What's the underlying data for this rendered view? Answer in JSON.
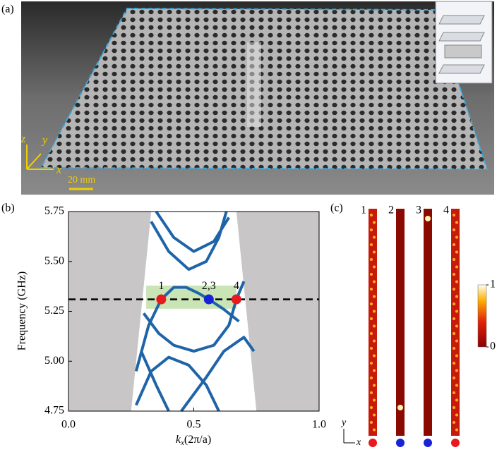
{
  "panels": {
    "a": "(a)",
    "b": "(b)",
    "c": "(c)"
  },
  "photo": {
    "axes": [
      "z",
      "y",
      "x"
    ],
    "scale_bar": "20 mm"
  },
  "chart_data": {
    "type": "line",
    "y_label": "Frequency (GHz)",
    "x_label": [
      "k",
      "x",
      "(2π/a)"
    ],
    "xlim": [
      0,
      1
    ],
    "ylim": [
      4.75,
      5.75
    ],
    "xticks": [
      {
        "value": 0,
        "label": "0.0"
      },
      {
        "value": 0.5,
        "label": "0.5"
      },
      {
        "value": 1,
        "label": "1.0"
      }
    ],
    "yticks": [
      {
        "value": 4.75,
        "label": "4.75"
      },
      {
        "value": 5,
        "label": "5.00"
      },
      {
        "value": 5.25,
        "label": "5.25"
      },
      {
        "value": 5.5,
        "label": "5.50"
      },
      {
        "value": 5.75,
        "label": "5.75"
      }
    ],
    "light_cone": {
      "x": [
        0.25,
        0.33,
        0.67,
        0.75
      ],
      "y": [
        4.75,
        5.75,
        5.75,
        4.75
      ]
    },
    "highlight": {
      "x": [
        0.31,
        0.67
      ],
      "y": [
        5.263,
        5.379
      ],
      "color": "#bfe0a8"
    },
    "reference_line": 5.31,
    "band_color": "#1f64a8",
    "bands": [
      {
        "x": [
          0.27,
          0.32,
          0.37,
          0.42,
          0.47,
          0.52,
          0.56,
          0.62,
          0.68
        ],
        "y": [
          4.95,
          5.18,
          5.31,
          5.37,
          5.37,
          5.34,
          5.31,
          5.26,
          5.2
        ]
      },
      {
        "x": [
          0.3,
          0.36,
          0.42,
          0.5,
          0.58,
          0.64,
          0.67,
          0.7
        ],
        "y": [
          5.24,
          5.14,
          5.08,
          5.05,
          5.08,
          5.18,
          5.31,
          5.4
        ]
      },
      {
        "x": [
          0.33,
          0.4,
          0.48,
          0.55,
          0.6,
          0.63
        ],
        "y": [
          5.7,
          5.55,
          5.46,
          5.5,
          5.62,
          5.75
        ]
      },
      {
        "x": [
          0.35,
          0.42,
          0.5,
          0.58,
          0.64
        ],
        "y": [
          5.75,
          5.62,
          5.55,
          5.6,
          5.72
        ]
      },
      {
        "x": [
          0.27,
          0.33,
          0.4,
          0.48,
          0.55,
          0.6
        ],
        "y": [
          4.78,
          4.95,
          5.02,
          4.98,
          4.88,
          4.75
        ]
      },
      {
        "x": [
          0.45,
          0.55,
          0.62,
          0.7,
          0.74
        ],
        "y": [
          4.75,
          4.92,
          5.05,
          5.12,
          5.05
        ]
      },
      {
        "x": [
          0.29,
          0.35,
          0.4
        ],
        "y": [
          5.05,
          4.88,
          4.75
        ]
      }
    ],
    "points": {
      "x": [
        0.37,
        0.56,
        0.67
      ],
      "y": [
        5.31,
        5.31,
        5.31
      ],
      "labels": [
        "1",
        "2,3",
        "4"
      ],
      "colors": [
        "#e8191f",
        "#1a22d8",
        "#e8191f"
      ]
    }
  },
  "field_maps": {
    "labels": [
      "1",
      "2",
      "3",
      "4"
    ],
    "colors": [
      "#e8191f",
      "#1a22d8",
      "#1a22d8",
      "#e8191f"
    ],
    "axes": [
      "y",
      "x"
    ],
    "colorbar": {
      "ticks": [
        1,
        0
      ]
    }
  }
}
